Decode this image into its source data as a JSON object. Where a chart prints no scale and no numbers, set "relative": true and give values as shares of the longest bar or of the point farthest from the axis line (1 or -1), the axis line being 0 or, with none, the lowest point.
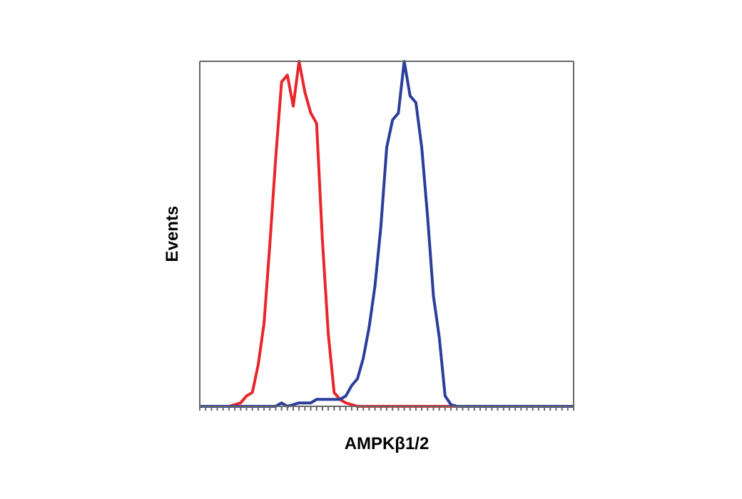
{
  "chart_data": {
    "type": "line",
    "relative": true,
    "xlabel": "AMPKβ1/2",
    "ylabel": "Events",
    "legend": false,
    "marker": "none",
    "line_style": "solid",
    "categories": [
      null,
      null,
      null,
      null,
      null,
      null,
      null,
      null,
      null,
      null,
      null,
      null,
      null,
      null,
      null,
      null,
      null,
      null,
      null,
      null,
      null,
      null,
      null,
      null,
      null,
      null,
      null,
      null,
      null,
      null,
      null,
      null,
      null,
      null,
      null,
      null,
      null,
      null,
      null,
      null,
      null,
      null,
      null,
      null,
      null,
      null,
      null,
      null,
      null,
      null,
      null,
      null,
      null,
      null,
      null,
      null,
      null,
      null,
      null,
      null,
      null,
      null,
      null,
      null,
      null
    ],
    "series": [
      {
        "color": "#e8262b",
        "values": [
          null,
          null,
          null,
          0,
          0,
          0,
          0.005,
          0.01,
          0.03,
          0.04,
          0.12,
          0.24,
          0.47,
          0.72,
          0.94,
          0.96,
          0.87,
          1.0,
          0.91,
          0.85,
          0.82,
          0.48,
          0.21,
          0.04,
          0.02,
          0.01,
          0.005,
          0,
          0,
          0,
          0,
          0,
          0,
          0,
          0,
          0,
          0,
          0,
          0,
          0,
          0,
          0,
          0,
          0,
          0,
          0,
          null,
          null,
          null,
          null,
          null,
          null,
          null,
          null,
          null,
          null,
          null,
          null,
          null,
          null,
          null,
          null,
          null,
          null,
          null
        ]
      },
      {
        "color": "#2b3e9b",
        "values": [
          0,
          0,
          0,
          0,
          0,
          0,
          0,
          0,
          0,
          0,
          0,
          0,
          0,
          0,
          0.01,
          0,
          0.005,
          0.01,
          0.01,
          0.01,
          0.02,
          0.02,
          0.02,
          0.02,
          0.02,
          0.03,
          0.06,
          0.08,
          0.14,
          0.23,
          0.35,
          0.52,
          0.75,
          0.83,
          0.85,
          1.0,
          0.9,
          0.88,
          0.75,
          0.55,
          0.32,
          0.2,
          0.03,
          0.005,
          0,
          0,
          0,
          0,
          0,
          0,
          0,
          0,
          0,
          0,
          0,
          0,
          0,
          0,
          0,
          0,
          0,
          0,
          0,
          0,
          0
        ]
      }
    ]
  }
}
